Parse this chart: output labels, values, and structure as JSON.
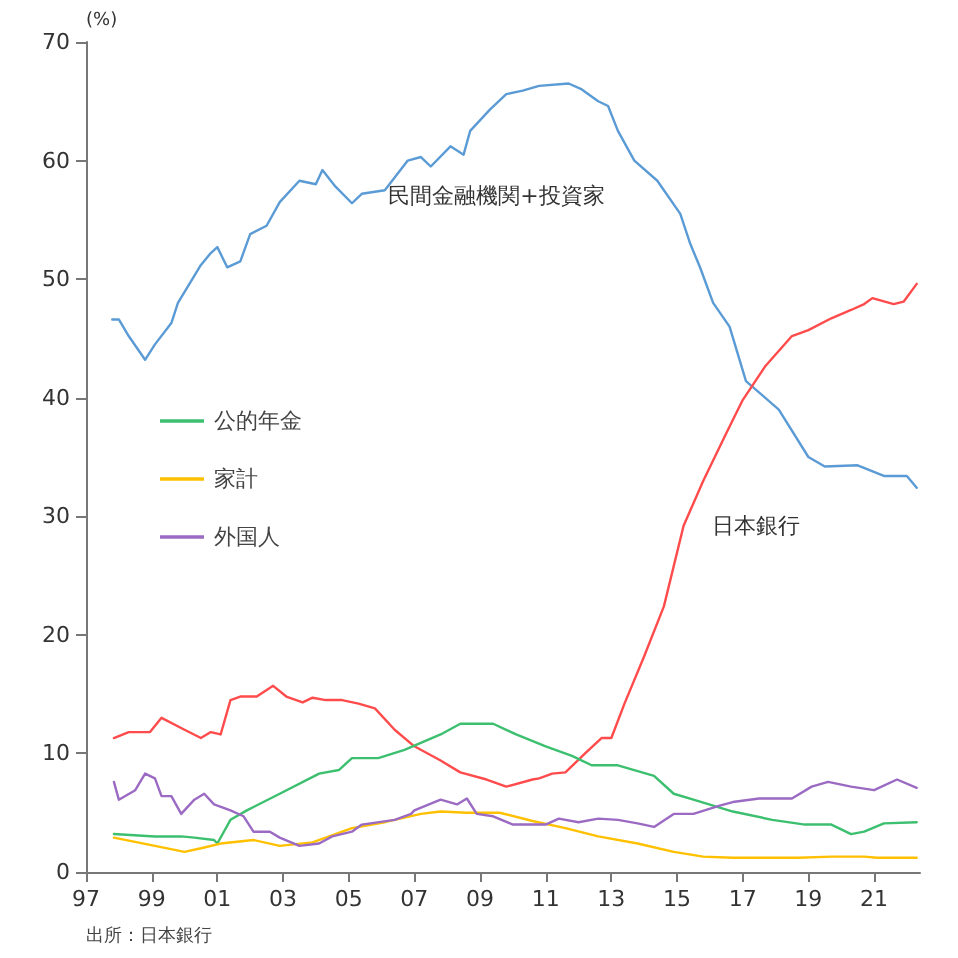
{
  "chart_data": {
    "type": "line",
    "ylabel": "(%)",
    "annotations": [
      "出所：日本銀行"
    ],
    "xlim": [
      1997,
      2022.4
    ],
    "xticks": [
      {
        "value": 1997,
        "label": "97"
      },
      {
        "value": 1999,
        "label": "99"
      },
      {
        "value": 2001,
        "label": "01"
      },
      {
        "value": 2003,
        "label": "03"
      },
      {
        "value": 2005,
        "label": "05"
      },
      {
        "value": 2007,
        "label": "07"
      },
      {
        "value": 2009,
        "label": "09"
      },
      {
        "value": 2011,
        "label": "11"
      },
      {
        "value": 2013,
        "label": "13"
      },
      {
        "value": 2015,
        "label": "15"
      },
      {
        "value": 2017,
        "label": "17"
      },
      {
        "value": 2019,
        "label": "19"
      },
      {
        "value": 2021,
        "label": "21"
      }
    ],
    "ylim": [
      0,
      70
    ],
    "yticks": [
      0,
      10,
      20,
      30,
      40,
      50,
      60,
      70
    ],
    "grid": false,
    "legend": "left",
    "marker": "none",
    "line_style": "solid",
    "series": [
      {
        "name": "民間金融機関+投資家",
        "color": "#5b9bd5",
        "x": [
          1997.8,
          1998.0,
          1998.3,
          1998.8,
          1999.1,
          1999.6,
          1999.8,
          2000.5,
          2000.8,
          2001.0,
          2001.3,
          2001.7,
          2002.0,
          2002.5,
          2002.9,
          2003.5,
          2004.0,
          2004.2,
          2004.6,
          2005.1,
          2005.4,
          2006.1,
          2006.8,
          2007.2,
          2007.5,
          2008.1,
          2008.5,
          2008.7,
          2009.3,
          2009.8,
          2010.3,
          2010.8,
          2011.7,
          2012.1,
          2012.6,
          2012.9,
          2013.2,
          2013.7,
          2014.4,
          2015.1,
          2015.4,
          2015.7,
          2016.1,
          2016.6,
          2017.1,
          2018.1,
          2019.0,
          2019.5,
          2020.5,
          2021.3,
          2022.0,
          2022.3
        ],
        "values": [
          46.6,
          46.6,
          45.2,
          43.2,
          44.5,
          46.3,
          48,
          51.2,
          52.2,
          52.7,
          51.0,
          51.5,
          53.8,
          54.5,
          56.5,
          58.3,
          58.0,
          59.2,
          57.8,
          56.4,
          57.2,
          57.5,
          60.0,
          60.3,
          59.5,
          61.2,
          60.5,
          62.5,
          64.3,
          65.6,
          65.9,
          66.3,
          66.5,
          66.0,
          65.0,
          64.6,
          62.5,
          60.0,
          58.3,
          55.5,
          53,
          51.0,
          48,
          46.0,
          41.4,
          39.0,
          35.0,
          34.2,
          34.3,
          33.4,
          33.4,
          32.4
        ]
      },
      {
        "name": "日本銀行",
        "color": "#ff4b4b",
        "x": [
          1997.85,
          1998.3,
          1998.95,
          1999.3,
          2000,
          2000.5,
          2000.8,
          2001.1,
          2001.4,
          2001.7,
          2002.2,
          2002.7,
          2003.1,
          2003.6,
          2003.9,
          2004.3,
          2004.8,
          2005.3,
          2005.8,
          2006.4,
          2007.0,
          2007.8,
          2008.4,
          2009.2,
          2009.8,
          2010.6,
          2010.8,
          2011.2,
          2011.6,
          2012.2,
          2012.7,
          2013.0,
          2013.4,
          2014.0,
          2014.6,
          2015.2,
          2015.8,
          2016.5,
          2017.0,
          2017.7,
          2018.5,
          2019.0,
          2019.7,
          2020.3,
          2020.7,
          2020.95,
          2021.6,
          2021.9,
          2022.3
        ],
        "values": [
          11.3,
          11.8,
          11.8,
          13.0,
          12.0,
          11.3,
          11.8,
          11.6,
          14.5,
          14.8,
          14.8,
          15.7,
          14.8,
          14.3,
          14.7,
          14.5,
          14.5,
          14.2,
          13.8,
          12.0,
          10.6,
          9.4,
          8.4,
          7.8,
          7.2,
          7.8,
          7.9,
          8.3,
          8.4,
          10.0,
          11.3,
          11.3,
          14.2,
          18.2,
          22.4,
          29.2,
          33.0,
          37,
          39.8,
          42.7,
          45.2,
          45.7,
          46.7,
          47.4,
          47.9,
          48.4,
          47.9,
          48.1,
          49.6
        ]
      },
      {
        "name": "公的年金",
        "color": "#3cbf6f",
        "x": [
          1997.85,
          1999.1,
          1999.9,
          2000.3,
          2000.9,
          2001.0,
          2001.4,
          2001.9,
          2002.9,
          2004.1,
          2004.7,
          2005.1,
          2005.9,
          2006.7,
          2007.8,
          2008.4,
          2009.4,
          2010.1,
          2011.0,
          2011.8,
          2012.4,
          2013.2,
          2014.3,
          2014.9,
          2015.5,
          2016.7,
          2017.9,
          2018.9,
          2019.7,
          2020.3,
          2020.7,
          2021.3,
          2022.3
        ],
        "values": [
          3.2,
          3.0,
          3.0,
          2.9,
          2.7,
          2.4,
          4.4,
          5.2,
          6.6,
          8.3,
          8.6,
          9.6,
          9.6,
          10.3,
          11.6,
          12.5,
          12.5,
          11.6,
          10.6,
          9.8,
          9.0,
          9.0,
          8.1,
          6.6,
          6.1,
          5.1,
          4.4,
          4.0,
          4.0,
          3.2,
          3.4,
          4.1,
          4.2
        ]
      },
      {
        "name": "家計",
        "color": "#ffc000",
        "x": [
          1997.85,
          1999.1,
          2000,
          2000.5,
          2001.1,
          2002.1,
          2002.9,
          2003.9,
          2005.1,
          2006.1,
          2007.2,
          2007.8,
          2008.6,
          2009.6,
          2010.6,
          2011.6,
          2012.6,
          2013.8,
          2014.9,
          2015.8,
          2016.7,
          2018.7,
          2019.7,
          2020.7,
          2021.1,
          2022.3
        ],
        "values": [
          2.9,
          2.2,
          1.7,
          2.0,
          2.4,
          2.7,
          2.2,
          2.5,
          3.7,
          4.2,
          4.9,
          5.1,
          5.0,
          5.0,
          4.3,
          3.7,
          3.0,
          2.4,
          1.7,
          1.3,
          1.2,
          1.2,
          1.3,
          1.3,
          1.2,
          1.2
        ]
      },
      {
        "name": "外国人",
        "color": "#9b6bc4",
        "x": [
          1997.85,
          1998.0,
          1998.5,
          1998.8,
          1999.1,
          1999.3,
          1999.6,
          1999.9,
          2000.3,
          2000.6,
          2000.9,
          2001.4,
          2001.8,
          2002.1,
          2002.6,
          2002.9,
          2003.5,
          2004.1,
          2004.5,
          2005.1,
          2005.4,
          2006.4,
          2006.9,
          2007.0,
          2007.8,
          2008.3,
          2008.6,
          2008.9,
          2009.4,
          2010.0,
          2011.0,
          2011.4,
          2012.0,
          2012.6,
          2013.2,
          2013.8,
          2014.3,
          2014.9,
          2015.5,
          2016.3,
          2016.7,
          2017.5,
          2018.5,
          2019.1,
          2019.6,
          2020.3,
          2021.0,
          2021.7,
          2022.3
        ],
        "values": [
          7.6,
          6.1,
          6.9,
          8.3,
          7.9,
          6.4,
          6.4,
          4.9,
          6.1,
          6.6,
          5.7,
          5.2,
          4.7,
          3.4,
          3.4,
          2.9,
          2.2,
          2.4,
          3.0,
          3.4,
          4.0,
          4.4,
          4.9,
          5.2,
          6.1,
          5.7,
          6.2,
          4.9,
          4.7,
          4.0,
          4.0,
          4.5,
          4.2,
          4.5,
          4.4,
          4.1,
          3.8,
          4.9,
          4.9,
          5.6,
          5.9,
          6.2,
          6.2,
          7.2,
          7.6,
          7.2,
          6.9,
          7.8,
          7.1
        ]
      }
    ]
  }
}
